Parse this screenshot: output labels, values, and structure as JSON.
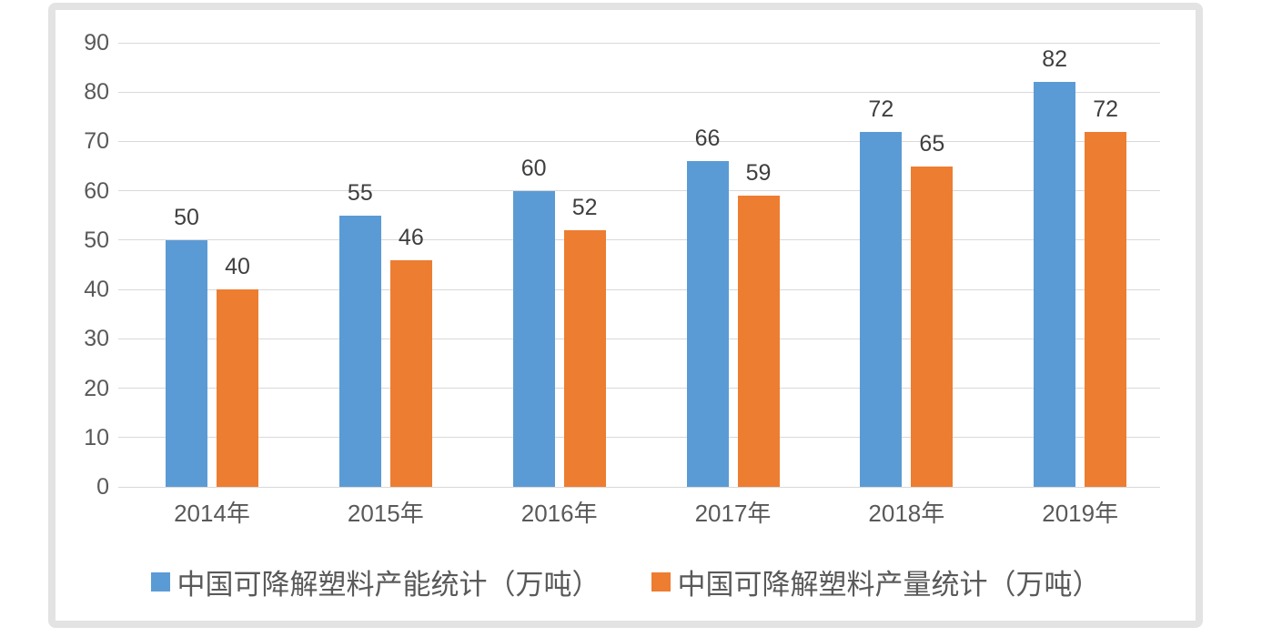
{
  "chart_data": {
    "type": "bar",
    "categories": [
      "2014年",
      "2015年",
      "2016年",
      "2017年",
      "2018年",
      "2019年"
    ],
    "series": [
      {
        "name": "中国可降解塑料产能统计（万吨）",
        "color": "#5B9BD5",
        "values": [
          50,
          55,
          60,
          66,
          72,
          82
        ]
      },
      {
        "name": "中国可降解塑料产量统计（万吨）",
        "color": "#ED7D31",
        "values": [
          40,
          46,
          52,
          59,
          65,
          72
        ]
      }
    ],
    "ylim": [
      0,
      90
    ],
    "yticks": [
      0,
      10,
      20,
      30,
      40,
      50,
      60,
      70,
      80,
      90
    ],
    "grid": true,
    "data_labels": true,
    "legend_position": "bottom"
  },
  "colors": {
    "series_blue": "#5B9BD5",
    "series_orange": "#ED7D31",
    "gridline": "#D9D9D9",
    "axis_text": "#595959",
    "data_label_text": "#3F3F3F",
    "frame_border": "#E3E3E3",
    "background": "#FFFFFF"
  }
}
